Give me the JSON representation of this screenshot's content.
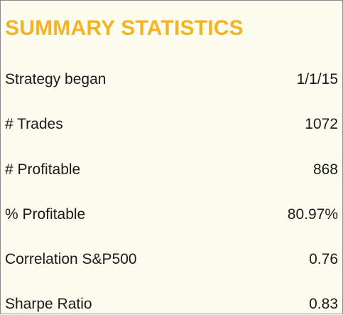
{
  "title": "SUMMARY STATISTICS",
  "colors": {
    "title": "#f5b324",
    "background": "#fdfdef",
    "text": "#1a1a1a",
    "border": "#8c8c8c"
  },
  "rows": [
    {
      "label": "Strategy began",
      "value": "1/1/15"
    },
    {
      "label": "# Trades",
      "value": "1072"
    },
    {
      "label": "# Profitable",
      "value": "868"
    },
    {
      "label": "% Profitable",
      "value": "80.97%"
    },
    {
      "label": "Correlation S&P500",
      "value": "0.76"
    },
    {
      "label": "Sharpe Ratio",
      "value": "0.83"
    }
  ]
}
